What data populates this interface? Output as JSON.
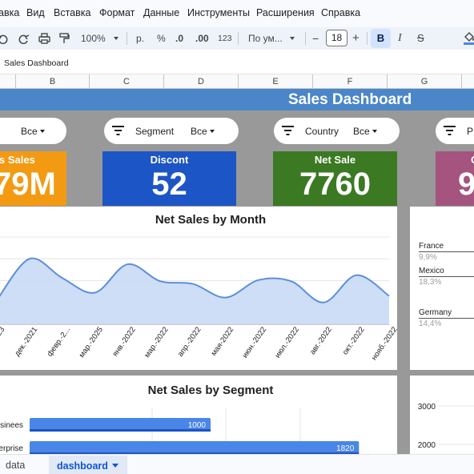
{
  "menu": [
    "авка",
    "Вид",
    "Вставка",
    "Формат",
    "Данные",
    "Инструменты",
    "Расширения",
    "Справка"
  ],
  "toolbar": {
    "zoom": "100%",
    "currency": "р.",
    "percent": "%",
    "dec_decrease": ".0",
    "dec_increase": ".00",
    "number_format": "123",
    "font": "По ум...",
    "font_size": "18",
    "bold": "B",
    "italic": "I",
    "strike": "S",
    "minus": "−",
    "plus": "+"
  },
  "formula_bar": {
    "text": "Sales Dashboard"
  },
  "columns": [
    "B",
    "C",
    "D",
    "E",
    "F",
    "G"
  ],
  "dashboard": {
    "title": "Sales Dashboard",
    "filters": [
      {
        "label": "",
        "value": "Все"
      },
      {
        "label": "Segment",
        "value": "Все"
      },
      {
        "label": "Country",
        "value": "Все"
      },
      {
        "label": "P",
        "value": ""
      }
    ],
    "kpis": [
      {
        "label": "s Sales",
        "value": "79M",
        "color": "#f39a13"
      },
      {
        "label": "Discont",
        "value": "52",
        "color": "#1c55c5"
      },
      {
        "label": "Net Sale",
        "value": "7760",
        "color": "#3b7a22"
      },
      {
        "label": "G",
        "value": "9",
        "color": "#a4547f"
      }
    ]
  },
  "chart_data": [
    {
      "type": "area",
      "title": "Net Sales by Month",
      "categories": [
        "...2023",
        "дек.-2021",
        "февр.-2...",
        "мар.-2025",
        "янв.-2022",
        "мар.-2022",
        "апр.-2022",
        "мая-2022",
        "июн.-2022",
        "июл.-2022",
        "авг.-2022",
        "окт.-2022",
        "нояб.-2022"
      ],
      "values": [
        44,
        120,
        85,
        58,
        110,
        79,
        74,
        49,
        81,
        79,
        40,
        90,
        52
      ],
      "ylim": [
        0,
        160
      ],
      "grid": true,
      "color": "#5b8fdc"
    },
    {
      "type": "bar",
      "title": "Net Sales by Segment",
      "orientation": "horizontal",
      "categories": [
        "sinees",
        "erprise"
      ],
      "values": [
        1000,
        1820
      ],
      "xlim": [
        0,
        2000
      ],
      "color": "#4a86e8"
    },
    {
      "type": "bar",
      "title": "",
      "categories": [
        "France",
        "Mexico",
        "Germany"
      ],
      "labels": [
        "9,9%",
        "18,3%",
        "14,4%"
      ]
    },
    {
      "type": "bar",
      "title": "",
      "y_ticks": [
        "3000",
        "2000"
      ]
    }
  ],
  "sheets": [
    {
      "name": "data",
      "active": false
    },
    {
      "name": "dashboard",
      "active": true
    }
  ]
}
